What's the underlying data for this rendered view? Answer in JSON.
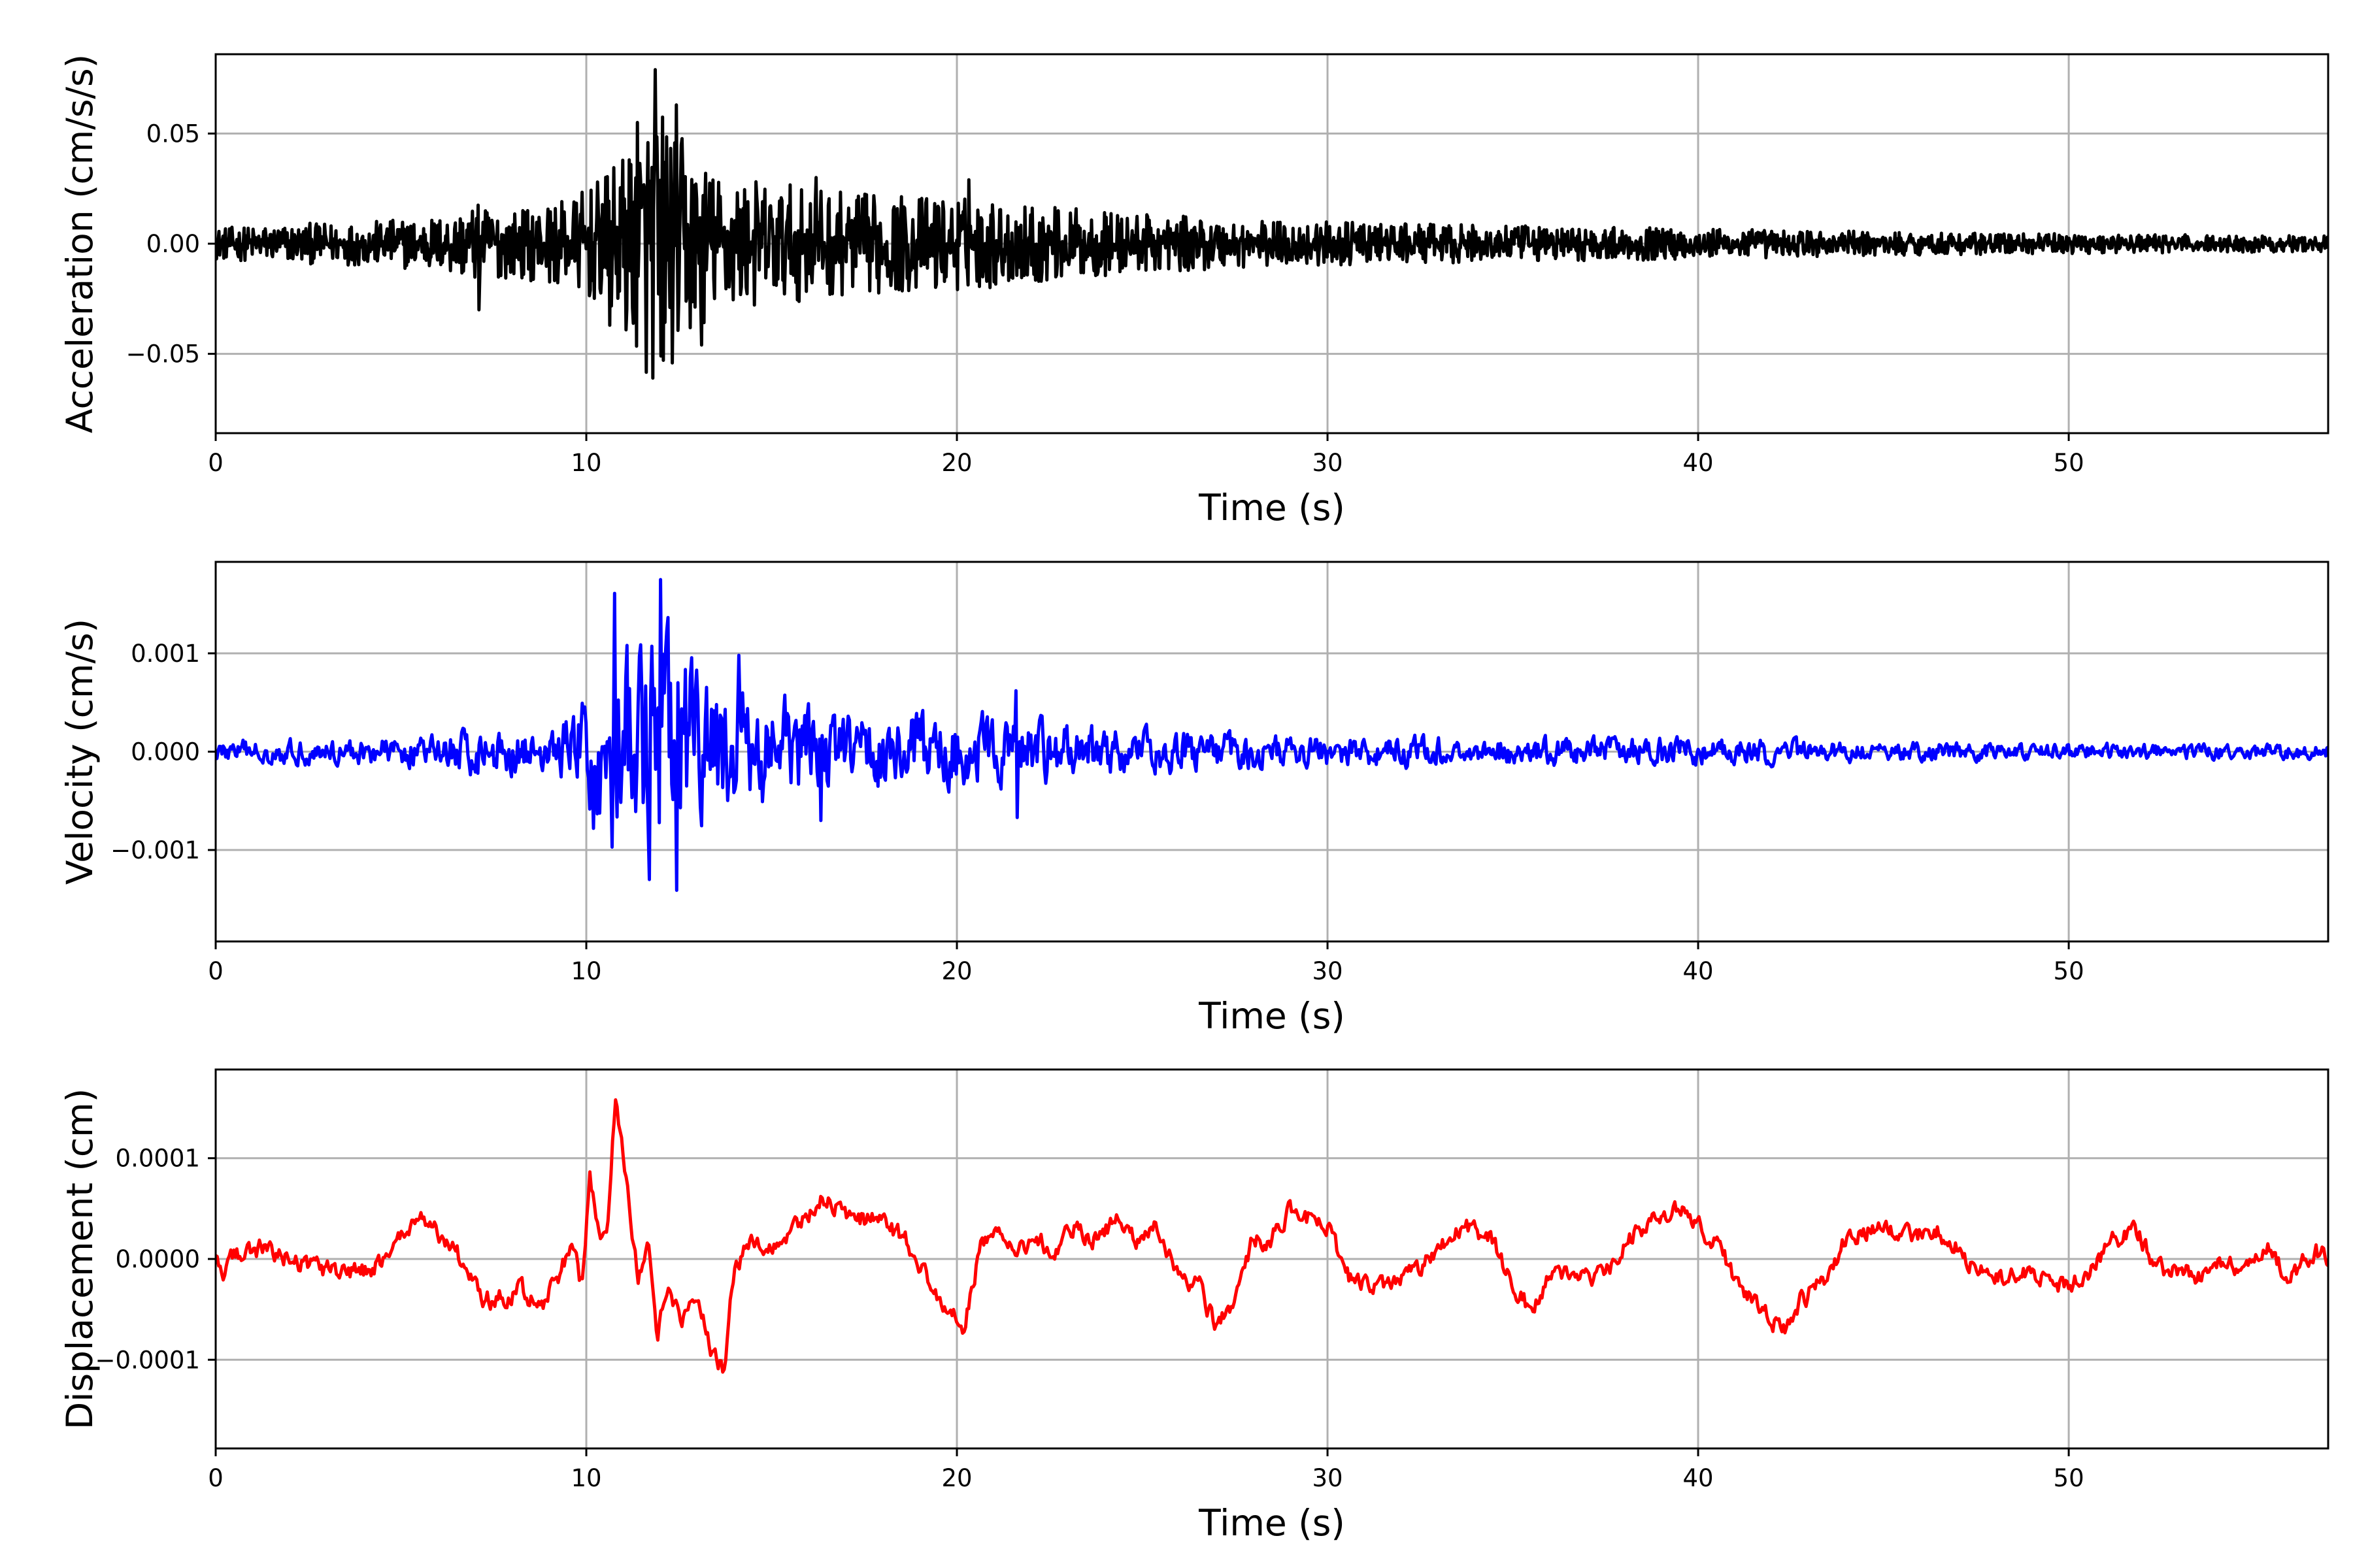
{
  "chart_data": [
    {
      "type": "line",
      "xlabel": "Time (s)",
      "ylabel": "Acceleration (cm/s/s)",
      "xlim": [
        0,
        57
      ],
      "ylim": [
        -0.086,
        0.086
      ],
      "xticks": [
        0,
        10,
        20,
        30,
        40,
        50
      ],
      "xtick_labels": [
        "0",
        "10",
        "20",
        "30",
        "40",
        "50"
      ],
      "yticks": [
        -0.05,
        0,
        0.05
      ],
      "ytick_labels": [
        "−0.05",
        "0.00",
        "0.05"
      ],
      "grid": true,
      "series": [
        {
          "color": "#000000",
          "x": [
            0,
            2,
            4,
            6,
            7,
            8,
            9.5,
            10.5,
            11.2,
            11.8,
            12.2,
            12.8,
            13.5,
            15,
            17,
            20,
            22,
            25,
            28,
            30,
            35,
            40,
            45,
            50,
            57
          ],
          "envelope": [
            0.008,
            0.01,
            0.011,
            0.014,
            0.02,
            0.017,
            0.022,
            0.034,
            0.05,
            0.075,
            0.065,
            0.05,
            0.036,
            0.031,
            0.026,
            0.024,
            0.02,
            0.015,
            0.012,
            0.011,
            0.009,
            0.008,
            0.006,
            0.005,
            0.004
          ],
          "peaks": [
            {
              "x": 11.85,
              "y": 0.079
            },
            {
              "x": 11.8,
              "y": -0.061
            },
            {
              "x": 12.4,
              "y": 0.063
            },
            {
              "x": 11.35,
              "y": 0.055
            },
            {
              "x": 12.0,
              "y": -0.051
            },
            {
              "x": 13.1,
              "y": -0.046
            },
            {
              "x": 10.6,
              "y": -0.037
            },
            {
              "x": 7.1,
              "y": -0.03
            },
            {
              "x": 16.2,
              "y": 0.03
            },
            {
              "x": 20.3,
              "y": 0.029
            }
          ]
        }
      ]
    },
    {
      "type": "line",
      "xlabel": "Time (s)",
      "ylabel": "Velocity (cm/s)",
      "xlim": [
        0,
        57
      ],
      "ylim": [
        -0.00193,
        0.00193
      ],
      "xticks": [
        0,
        10,
        20,
        30,
        40,
        50
      ],
      "xtick_labels": [
        "0",
        "10",
        "20",
        "30",
        "40",
        "50"
      ],
      "yticks": [
        -0.001,
        0,
        0.001
      ],
      "ytick_labels": [
        "−0.001",
        "0.000",
        "0.001"
      ],
      "grid": true,
      "series": [
        {
          "color": "#0000ff",
          "x": [
            0,
            3,
            6,
            7.2,
            9,
            9.8,
            10.7,
            11.5,
            12.0,
            12.5,
            13.5,
            15,
            17,
            20,
            22,
            25,
            28,
            30,
            35,
            40,
            45,
            50,
            57
          ],
          "envelope": [
            0.00014,
            0.00016,
            0.0002,
            0.00035,
            0.00022,
            0.0007,
            0.0014,
            0.0012,
            0.0016,
            0.0013,
            0.0009,
            0.0007,
            0.0005,
            0.0005,
            0.0004,
            0.00028,
            0.00022,
            0.0002,
            0.00018,
            0.00018,
            0.00012,
            0.0001,
            0.0001
          ],
          "peaks": [
            {
              "x": 12.0,
              "y": 0.00175
            },
            {
              "x": 10.75,
              "y": 0.00161
            },
            {
              "x": 12.45,
              "y": -0.00141
            },
            {
              "x": 11.7,
              "y": -0.0013
            },
            {
              "x": 11.1,
              "y": 0.00108
            },
            {
              "x": 14.1,
              "y": 0.00098
            },
            {
              "x": 10.2,
              "y": -0.00078
            },
            {
              "x": 16.3,
              "y": -0.0007
            },
            {
              "x": 21.6,
              "y": 0.00062
            },
            {
              "x": 21.6,
              "y": -0.00067
            }
          ]
        }
      ]
    },
    {
      "type": "line",
      "xlabel": "Time (s)",
      "ylabel": "Displacement (cm)",
      "xlim": [
        0,
        57
      ],
      "ylim": [
        -0.000188,
        0.000188
      ],
      "xticks": [
        0,
        10,
        20,
        30,
        40,
        50
      ],
      "xtick_labels": [
        "0",
        "10",
        "20",
        "30",
        "40",
        "50"
      ],
      "yticks": [
        -0.0001,
        0,
        0.0001
      ],
      "ytick_labels": [
        "−0.0001",
        "0.0000",
        "0.0001"
      ],
      "grid": true,
      "series": [
        {
          "color": "#ff0000",
          "x": [
            0,
            0.2,
            0.6,
            1.2,
            2.0,
            2.8,
            3.5,
            4.2,
            4.8,
            5.5,
            6.2,
            6.8,
            7.2,
            7.6,
            8.2,
            8.8,
            9.2,
            9.6,
            9.9,
            10.1,
            10.4,
            10.6,
            10.8,
            11.1,
            11.4,
            11.7,
            11.9,
            12.2,
            12.6,
            13.0,
            13.4,
            13.7,
            14.0,
            14.4,
            15.0,
            15.6,
            16.3,
            16.8,
            17.4,
            18.0,
            18.8,
            19.4,
            19.8,
            20.2,
            20.6,
            21.0,
            21.4,
            22.0,
            22.6,
            23.2,
            23.8,
            24.4,
            24.9,
            25.4,
            26.0,
            26.6,
            27.0,
            27.5,
            28.0,
            28.5,
            29.0,
            29.5,
            30.0,
            30.6,
            31.2,
            31.8,
            32.5,
            33.2,
            33.8,
            34.4,
            35.0,
            35.5,
            36.0,
            36.6,
            37.2,
            37.8,
            38.4,
            39.0,
            39.6,
            40.0,
            40.5,
            41.0,
            41.5,
            42.0,
            42.4,
            42.8,
            43.4,
            44.0,
            44.6,
            45.2,
            45.8,
            46.4,
            47.0,
            47.6,
            48.2,
            48.8,
            49.4,
            50.0,
            50.6,
            51.2,
            51.8,
            52.4,
            53.0,
            53.6,
            54.2,
            54.8,
            55.4,
            56.0,
            56.6,
            57
          ],
          "values": [
            0,
            -1e-05,
            5e-06,
            1e-05,
            0,
            -1e-05,
            -1.5e-05,
            -1e-05,
            1e-05,
            4e-05,
            2e-05,
            -1e-05,
            -4e-05,
            -4e-05,
            -3e-05,
            -5e-05,
            -2e-05,
            1e-05,
            -3e-05,
            8e-05,
            1e-05,
            4e-05,
            0.00017,
            7e-05,
            -2e-05,
            2e-05,
            -8e-05,
            -3e-05,
            -6e-05,
            -4e-05,
            -9e-05,
            -0.00011,
            -1e-05,
            2e-05,
            1e-05,
            3e-05,
            6e-05,
            5e-05,
            4e-05,
            4e-05,
            1e-05,
            -3e-05,
            -5e-05,
            -7e-05,
            1e-05,
            3e-05,
            1e-05,
            2e-05,
            1e-05,
            3e-05,
            2e-05,
            4e-05,
            2e-05,
            3e-05,
            -2e-05,
            -3e-05,
            -7e-05,
            -4e-05,
            2e-05,
            2e-05,
            5e-05,
            4e-05,
            3e-05,
            -2e-05,
            -3e-05,
            -2e-05,
            -1e-05,
            2e-05,
            3e-05,
            2e-05,
            -3e-05,
            -5e-05,
            -2e-05,
            -1e-05,
            -2e-05,
            0,
            3e-05,
            4e-05,
            5e-05,
            3e-05,
            2e-05,
            -2e-05,
            -4e-05,
            -6e-05,
            -7e-05,
            -4e-05,
            -2e-05,
            2e-05,
            3e-05,
            3e-05,
            2e-05,
            3e-05,
            1e-05,
            -1e-05,
            -2e-05,
            -1e-05,
            -2e-05,
            -3e-05,
            -1e-05,
            2e-05,
            3e-05,
            -1e-05,
            -1e-05,
            -2e-05,
            0,
            -1e-05,
            1e-05,
            -2e-05,
            1e-05,
            0
          ]
        }
      ]
    }
  ]
}
